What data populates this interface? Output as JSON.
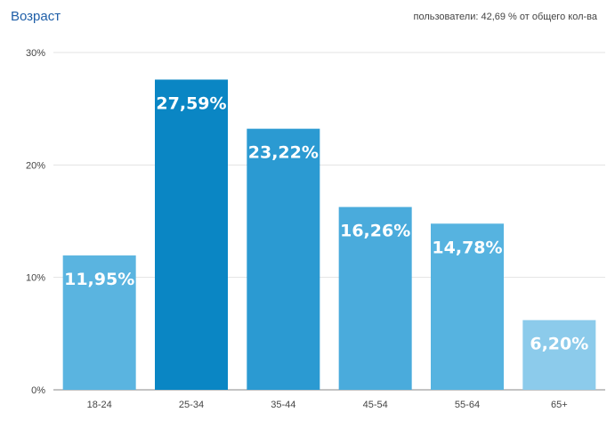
{
  "header": {
    "title": "Возраст",
    "subtitle": "пользователи: 42,69 % от общего кол-ва"
  },
  "chart_data": {
    "type": "bar",
    "title": "Возраст",
    "subtitle": "пользователи: 42,69 % от общего кол-ва",
    "xlabel": "",
    "ylabel": "",
    "categories": [
      "18-24",
      "25-34",
      "35-44",
      "45-54",
      "55-64",
      "65+"
    ],
    "values": [
      11.95,
      27.59,
      23.22,
      16.26,
      14.78,
      6.2
    ],
    "value_labels": [
      "11,95%",
      "27,59%",
      "23,22%",
      "16,26%",
      "14,78%",
      "6,20%"
    ],
    "bar_colors": [
      "#5ab4e0",
      "#0a86c4",
      "#2b9ad2",
      "#4aabdc",
      "#56b3e0",
      "#8ccbeb"
    ],
    "ylim": [
      0,
      30
    ],
    "yticks": [
      0,
      10,
      20,
      30
    ],
    "ytick_labels": [
      "0%",
      "10%",
      "20%",
      "30%"
    ],
    "grid": true,
    "legend": "none"
  }
}
